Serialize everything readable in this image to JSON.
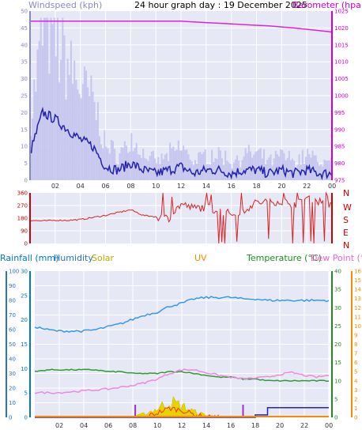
{
  "colors": {
    "wind_axis": "#8888cc",
    "baro_axis": "#cc00cc",
    "rain_axis": "#0077cc",
    "humidity_axis": "#2a6fd6",
    "solar_axis": "#bbaa00",
    "uv_axis": "#ff8800",
    "temp_axis": "#228822",
    "dew_axis": "#ee66cc",
    "dir_axis": "#cc0000",
    "panel_bg": "#e6e8f6",
    "grid": "#ffffff"
  },
  "header": {
    "title": "24 hour graph day : 19 December 2025"
  },
  "top_chart": {
    "wind_label": "Windspeed (kph)",
    "baro_label": "Barometer (hpa)",
    "wind_ticks": [
      "0",
      "5",
      "10",
      "15",
      "20",
      "25",
      "30",
      "35",
      "40",
      "45",
      "50"
    ],
    "baro_ticks": [
      "975",
      "980",
      "985",
      "990",
      "995",
      "1000",
      "1005",
      "1010",
      "1015",
      "1020",
      "1025"
    ]
  },
  "dir_chart": {
    "ticks": [
      "0",
      "90",
      "180",
      "270",
      "360"
    ],
    "compass": [
      "N",
      "W",
      "S",
      "E",
      "N"
    ]
  },
  "bottom_chart": {
    "labels": {
      "rainfall": "Rainfall (mm)",
      "humidity": "Humidity",
      "solar": "Solar",
      "uv": "UV",
      "temperature": "Temperature (°C)",
      "dewpoint": "Dew Point (°C)"
    },
    "humidity_ticks": [
      "0",
      "10",
      "20",
      "30",
      "40",
      "50",
      "60",
      "70",
      "80",
      "90",
      "100"
    ],
    "rain_ticks": [
      "0",
      "5",
      "10",
      "15",
      "20",
      "25",
      "30"
    ],
    "temp_ticks": [
      "0",
      "5",
      "10",
      "15",
      "20",
      "25",
      "30",
      "35",
      "40"
    ],
    "dew_ticks": [
      "0",
      "1",
      "2",
      "3",
      "4",
      "5",
      "6",
      "7",
      "8",
      "9",
      "10",
      "11",
      "12",
      "13",
      "14",
      "15",
      "16"
    ]
  },
  "x_ticks": [
    "02",
    "04",
    "06",
    "08",
    "10",
    "12",
    "14",
    "16",
    "18",
    "20",
    "22",
    "00"
  ],
  "chart_data": [
    {
      "type": "line",
      "title": "24 hour graph day : 19 December 2025",
      "x_hours": [
        0,
        1,
        2,
        3,
        4,
        5,
        6,
        7,
        8,
        9,
        10,
        11,
        12,
        13,
        14,
        15,
        16,
        17,
        18,
        19,
        20,
        21,
        22,
        23,
        24
      ],
      "series": [
        {
          "name": "Windspeed (kph)",
          "axis": "left",
          "ylim": [
            0,
            50
          ],
          "values": [
            8,
            20,
            18,
            15,
            12,
            10,
            4,
            3,
            5,
            3,
            2,
            3,
            4,
            2,
            3,
            3,
            2,
            3,
            3,
            2,
            3,
            2,
            3,
            2,
            2
          ]
        },
        {
          "name": "Barometer (hpa)",
          "axis": "right",
          "ylim": [
            975,
            1025
          ],
          "values": [
            1022,
            1022,
            1022,
            1022,
            1022,
            1022,
            1022,
            1022,
            1022,
            1022,
            1022,
            1022,
            1022,
            1021.8,
            1021.6,
            1021.4,
            1021.2,
            1021,
            1020.8,
            1020.6,
            1020.3,
            1020,
            1019.6,
            1019.2,
            1018.8
          ]
        }
      ]
    },
    {
      "type": "line",
      "title": "",
      "x_hours": [
        0,
        1,
        2,
        3,
        4,
        5,
        6,
        7,
        8,
        9,
        10,
        11,
        12,
        13,
        14,
        15,
        16,
        17,
        18,
        19,
        20,
        21,
        22,
        23,
        24
      ],
      "ylim": [
        0,
        360
      ],
      "series": [
        {
          "name": "Wind direction",
          "values": [
            165,
            160,
            165,
            165,
            170,
            185,
            200,
            220,
            240,
            200,
            190,
            180,
            280,
            250,
            260,
            230,
            210,
            240,
            290,
            300,
            300,
            280,
            320,
            300,
            280
          ]
        }
      ]
    },
    {
      "type": "line",
      "title": "",
      "x_hours": [
        0,
        1,
        2,
        3,
        4,
        5,
        6,
        7,
        8,
        9,
        10,
        11,
        12,
        13,
        14,
        15,
        16,
        17,
        18,
        19,
        20,
        21,
        22,
        23,
        24
      ],
      "series": [
        {
          "name": "Humidity",
          "axis": "humidity",
          "ylim": [
            0,
            100
          ],
          "values": [
            62,
            60,
            59,
            59,
            59,
            60,
            62,
            64,
            67,
            70,
            72,
            76,
            78,
            81,
            82,
            82,
            82,
            81,
            81,
            80,
            80,
            80,
            80,
            80,
            80
          ]
        },
        {
          "name": "Temperature (°C)",
          "axis": "temperature",
          "ylim": [
            0,
            40
          ],
          "values": [
            12.5,
            13,
            13,
            13,
            13,
            13,
            12.5,
            12.5,
            12,
            12,
            12,
            12.5,
            12.5,
            12,
            11.5,
            11,
            11,
            10.5,
            10.5,
            10,
            10,
            10,
            10,
            10,
            10
          ]
        },
        {
          "name": "Dew Point (°C)",
          "axis": "dewpoint",
          "ylim": [
            0,
            16
          ],
          "values": [
            2.7,
            2.7,
            2.7,
            2.8,
            2.9,
            3.0,
            3.1,
            3.3,
            3.5,
            3.8,
            4.2,
            4.8,
            5.2,
            5.2,
            4.9,
            4.6,
            4.4,
            4.2,
            4.3,
            4.4,
            4.7,
            4.9,
            4.6,
            4.4,
            4.6
          ]
        },
        {
          "name": "Rainfall (mm)",
          "axis": "rainfall",
          "ylim": [
            0,
            30
          ],
          "values": [
            0,
            0,
            0,
            0,
            0,
            0,
            0,
            0,
            0,
            0,
            0,
            0,
            0,
            0,
            0,
            0,
            0,
            0,
            0.5,
            2,
            2,
            2,
            2,
            2,
            2
          ]
        },
        {
          "name": "Solar",
          "axis": "solar",
          "ylim": [
            0,
            1000
          ],
          "values": [
            0,
            0,
            0,
            0,
            0,
            0,
            0,
            0,
            5,
            25,
            60,
            110,
            80,
            40,
            15,
            4,
            0,
            0,
            0,
            0,
            0,
            0,
            0,
            0,
            0
          ]
        },
        {
          "name": "UV",
          "axis": "uv",
          "ylim": [
            0,
            16
          ],
          "values": [
            0,
            0,
            0,
            0,
            0,
            0,
            0,
            0,
            0,
            0,
            0.5,
            1,
            0.8,
            0.3,
            0,
            0,
            0,
            0,
            0,
            0,
            0,
            0,
            0,
            0,
            0
          ]
        }
      ]
    }
  ]
}
